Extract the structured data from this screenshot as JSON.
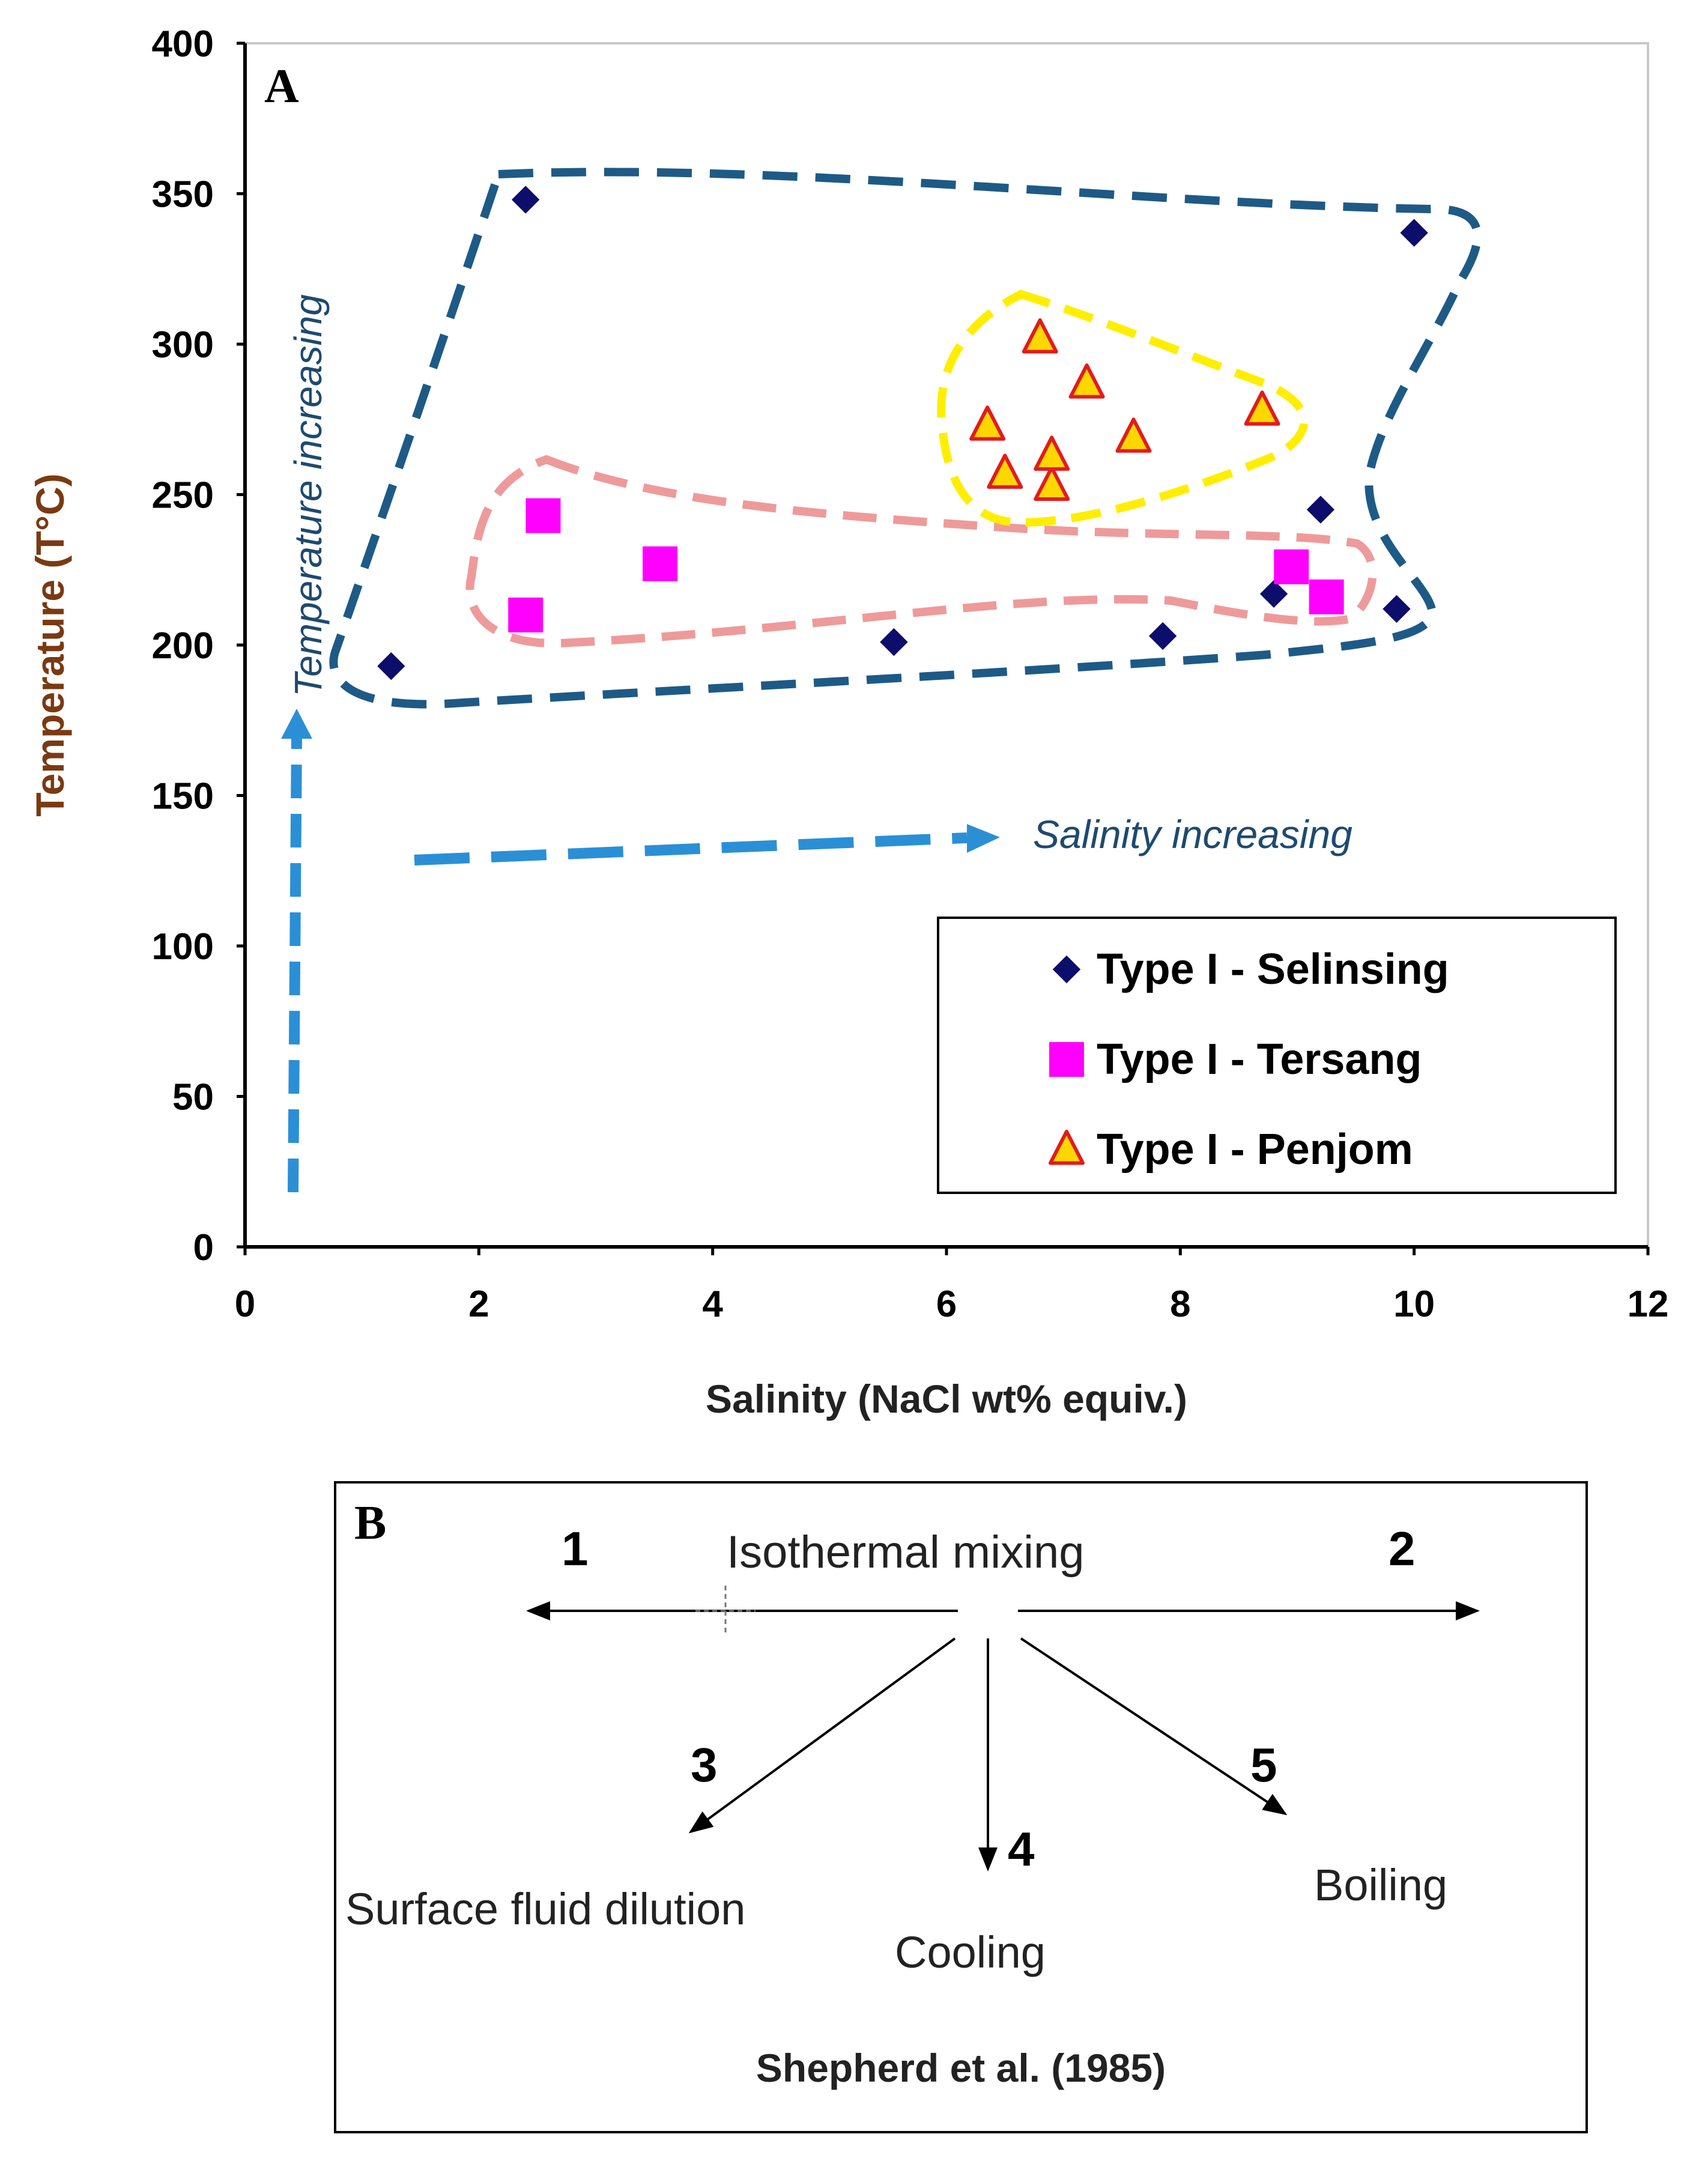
{
  "chart_data": {
    "type": "scatter",
    "panel_label": "A",
    "xlabel": "Salinity (NaCl wt% equiv.)",
    "ylabel": "Temperature (T°C)",
    "xlim": [
      0,
      12
    ],
    "ylim": [
      0,
      400
    ],
    "xticks": [
      0,
      2,
      4,
      6,
      8,
      10,
      12
    ],
    "yticks": [
      0,
      50,
      100,
      150,
      200,
      250,
      300,
      350,
      400
    ],
    "grid": false,
    "legend_position": "bottom-right",
    "colors": {
      "selinsing": "#0d0d6b",
      "tersang": "#ff00ff",
      "penjom_fill": "#ffd700",
      "penjom_edge": "#e31b1b",
      "envelope_all": "#1e5a86",
      "envelope_pink": "#ee9a9a",
      "envelope_yellow": "#ffee00",
      "trend_arrow": "#2b8fd6",
      "axis_label": "#7a3a12"
    },
    "series": [
      {
        "name": "Type I - Selinsing",
        "marker": "diamond",
        "points": [
          [
            1.25,
            193
          ],
          [
            2.4,
            348
          ],
          [
            5.55,
            201
          ],
          [
            7.85,
            203
          ],
          [
            8.8,
            217
          ],
          [
            9.2,
            245
          ],
          [
            9.85,
            212
          ],
          [
            10.0,
            337
          ]
        ]
      },
      {
        "name": "Type I - Tersang",
        "marker": "square",
        "points": [
          [
            2.4,
            210
          ],
          [
            2.55,
            243
          ],
          [
            3.55,
            227
          ],
          [
            8.95,
            226
          ],
          [
            9.25,
            216
          ]
        ]
      },
      {
        "name": "Type I - Penjom",
        "marker": "triangle",
        "points": [
          [
            6.35,
            273
          ],
          [
            6.5,
            257
          ],
          [
            6.8,
            302
          ],
          [
            6.9,
            253
          ],
          [
            6.9,
            263
          ],
          [
            7.2,
            287
          ],
          [
            7.6,
            269
          ],
          [
            8.7,
            278
          ]
        ]
      }
    ],
    "annotations": {
      "temperature": "Temperature increasing",
      "salinity": "Salinity increasing"
    }
  },
  "panel_b": {
    "label": "B",
    "process_title": "Isothermal mixing",
    "arrows": [
      {
        "number": "1",
        "text": ""
      },
      {
        "number": "2",
        "text": ""
      },
      {
        "number": "3",
        "text": "Surface fluid dilution"
      },
      {
        "number": "4",
        "text": "Cooling"
      },
      {
        "number": "5",
        "text": "Boiling"
      }
    ],
    "citation": "Shepherd et al. (1985)"
  }
}
